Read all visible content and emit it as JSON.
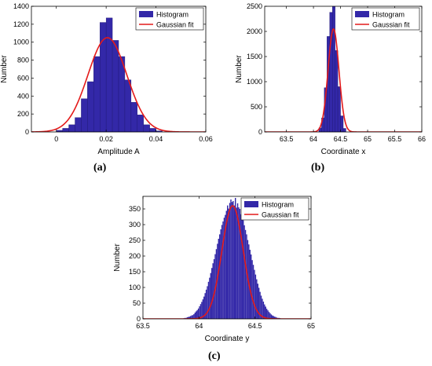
{
  "colors": {
    "histogram": "#3328a8",
    "fit": "#e41a1a"
  },
  "chart_data": [
    {
      "panel": "(a)",
      "type": "bar",
      "xlabel": "Amplitude A",
      "ylabel": "Number",
      "xlim": [
        -0.01,
        0.06
      ],
      "ylim": [
        0,
        1400
      ],
      "xticks": [
        "0",
        "0.02",
        "0.04",
        "0.06"
      ],
      "xtick_values": [
        0,
        0.02,
        0.04,
        0.06
      ],
      "yticks": [
        "0",
        "200",
        "400",
        "600",
        "800",
        "1000",
        "1200",
        "1400"
      ],
      "ytick_values": [
        0,
        200,
        400,
        600,
        800,
        1000,
        1200,
        1400
      ],
      "legend": [
        "Histogram",
        "Gaussian fit"
      ],
      "legend_position": "top-right",
      "bin_width": 0.0025,
      "x": [
        0.00125,
        0.00375,
        0.00625,
        0.00875,
        0.01125,
        0.01375,
        0.01625,
        0.01875,
        0.02125,
        0.02375,
        0.02625,
        0.02875,
        0.03125,
        0.03375,
        0.03625,
        0.03875,
        0.04125
      ],
      "values": [
        18,
        40,
        80,
        160,
        370,
        560,
        840,
        1220,
        1270,
        1020,
        840,
        580,
        330,
        190,
        80,
        40,
        12
      ],
      "fit": {
        "mean": 0.0205,
        "sigma": 0.0078,
        "peak": 1050
      }
    },
    {
      "panel": "(b)",
      "type": "bar",
      "xlabel": "Coordinate x",
      "ylabel": "Number",
      "xlim": [
        63.1,
        66
      ],
      "ylim": [
        0,
        2500
      ],
      "xticks": [
        "63.5",
        "64",
        "64.5",
        "65",
        "65.5",
        "66"
      ],
      "xtick_values": [
        63.5,
        64,
        64.5,
        65,
        65.5,
        66
      ],
      "yticks": [
        "0",
        "500",
        "1000",
        "1500",
        "2000",
        "2500"
      ],
      "ytick_values": [
        0,
        500,
        1000,
        1500,
        2000,
        2500
      ],
      "legend": [
        "Histogram",
        "Gaussian fit"
      ],
      "legend_position": "top-right",
      "bin_width": 0.05,
      "x": [
        64.125,
        64.175,
        64.225,
        64.275,
        64.325,
        64.375,
        64.425,
        64.475,
        64.525,
        64.575
      ],
      "values": [
        80,
        280,
        880,
        1900,
        2380,
        2500,
        1620,
        900,
        320,
        70
      ],
      "fit": {
        "mean": 64.37,
        "sigma": 0.1,
        "peak": 2050
      }
    },
    {
      "panel": "(c)",
      "type": "bar",
      "xlabel": "Coordinate y",
      "ylabel": "Number",
      "xlim": [
        63.5,
        65
      ],
      "ylim": [
        0,
        390
      ],
      "xticks": [
        "63.5",
        "64",
        "64.5",
        "65"
      ],
      "xtick_values": [
        63.5,
        64,
        64.5,
        65
      ],
      "yticks": [
        "0",
        "50",
        "100",
        "150",
        "200",
        "250",
        "300",
        "350"
      ],
      "ytick_values": [
        0,
        50,
        100,
        150,
        200,
        250,
        300,
        350
      ],
      "legend": [
        "Histogram",
        "Gaussian fit"
      ],
      "legend_position": "top-right",
      "bin_width": 0.01,
      "x_start": 63.845,
      "values": [
        1,
        1,
        2,
        3,
        3,
        5,
        6,
        7,
        9,
        11,
        12,
        15,
        20,
        24,
        28,
        33,
        40,
        47,
        54,
        62,
        71,
        82,
        93,
        104,
        118,
        131,
        146,
        162,
        177,
        190,
        206,
        222,
        239,
        255,
        269,
        285,
        299,
        310,
        322,
        331,
        344,
        361,
        351,
        369,
        380,
        372,
        375,
        361,
        385,
        354,
        368,
        355,
        350,
        333,
        325,
        314,
        298,
        283,
        269,
        251,
        237,
        220,
        205,
        187,
        172,
        156,
        141,
        126,
        112,
        99,
        86,
        74,
        64,
        55,
        46,
        39,
        32,
        27,
        22,
        18,
        14,
        11,
        9,
        7,
        6,
        4,
        3,
        3,
        2,
        1
      ],
      "fit": {
        "mean": 64.3,
        "sigma": 0.095,
        "peak": 360
      }
    }
  ]
}
